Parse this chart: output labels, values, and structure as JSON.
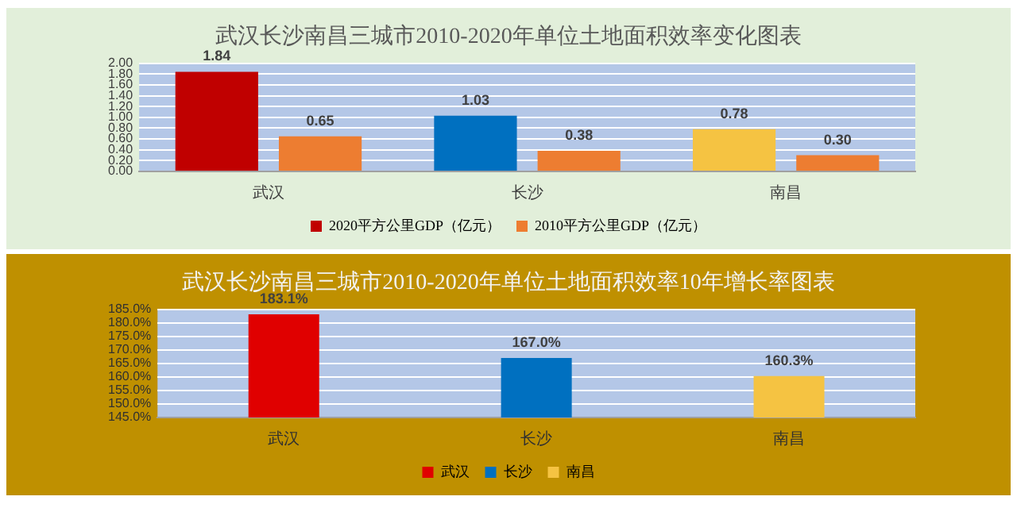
{
  "chart_data": [
    {
      "type": "bar",
      "title": "武汉长沙南昌三城市2010-2020年单位土地面积效率变化图表",
      "categories": [
        "武汉",
        "长沙",
        "南昌"
      ],
      "series": [
        {
          "name": "2020平方公里GDP（亿元）",
          "color": "#c00000",
          "colors": [
            "#c00000",
            "#0070c0",
            "#f5c342"
          ],
          "values": [
            1.84,
            1.03,
            0.78
          ],
          "value_labels": [
            "1.84",
            "1.03",
            "0.78"
          ]
        },
        {
          "name": "2010平方公里GDP（亿元）",
          "color": "#ed7d31",
          "values": [
            0.65,
            0.38,
            0.3
          ],
          "value_labels": [
            "0.65",
            "0.38",
            "0.30"
          ]
        }
      ],
      "ylim": [
        0,
        2
      ],
      "yticks": [
        {
          "value": 0,
          "label": "0.00"
        },
        {
          "value": 0.2,
          "label": "0.20"
        },
        {
          "value": 0.4,
          "label": "0.40"
        },
        {
          "value": 0.6,
          "label": "0.60"
        },
        {
          "value": 0.8,
          "label": "0.80"
        },
        {
          "value": 1,
          "label": "1.00"
        },
        {
          "value": 1.2,
          "label": "1.20"
        },
        {
          "value": 1.4,
          "label": "1.40"
        },
        {
          "value": 1.6,
          "label": "1.60"
        },
        {
          "value": 1.8,
          "label": "1.80"
        },
        {
          "value": 2,
          "label": "2.00"
        }
      ],
      "grid": "y",
      "legend": "bottom"
    },
    {
      "type": "bar",
      "title": "武汉长沙南昌三城市2010-2020年单位土地面积效率10年增长率图表",
      "categories": [
        "武汉",
        "长沙",
        "南昌"
      ],
      "stacked": true,
      "series": [
        {
          "name": "武汉",
          "color": "#e00000",
          "values": [
            183.1,
            null,
            null
          ],
          "value_labels": [
            "183.1%",
            null,
            null
          ]
        },
        {
          "name": "长沙",
          "color": "#0070c0",
          "values": [
            null,
            167.0,
            null
          ],
          "value_labels": [
            null,
            "167.0%",
            null
          ]
        },
        {
          "name": "南昌",
          "color": "#f5c342",
          "values": [
            null,
            null,
            160.3
          ],
          "value_labels": [
            null,
            null,
            "160.3%"
          ]
        }
      ],
      "ylim": [
        145,
        185
      ],
      "yticks": [
        {
          "value": 145,
          "label": "145.0%"
        },
        {
          "value": 150,
          "label": "150.0%"
        },
        {
          "value": 155,
          "label": "155.0%"
        },
        {
          "value": 160,
          "label": "160.0%"
        },
        {
          "value": 165,
          "label": "165.0%"
        },
        {
          "value": 170,
          "label": "170.0%"
        },
        {
          "value": 175,
          "label": "175.0%"
        },
        {
          "value": 180,
          "label": "180.0%"
        },
        {
          "value": 185,
          "label": "185.0%"
        }
      ],
      "grid": "y",
      "legend": "bottom"
    }
  ]
}
